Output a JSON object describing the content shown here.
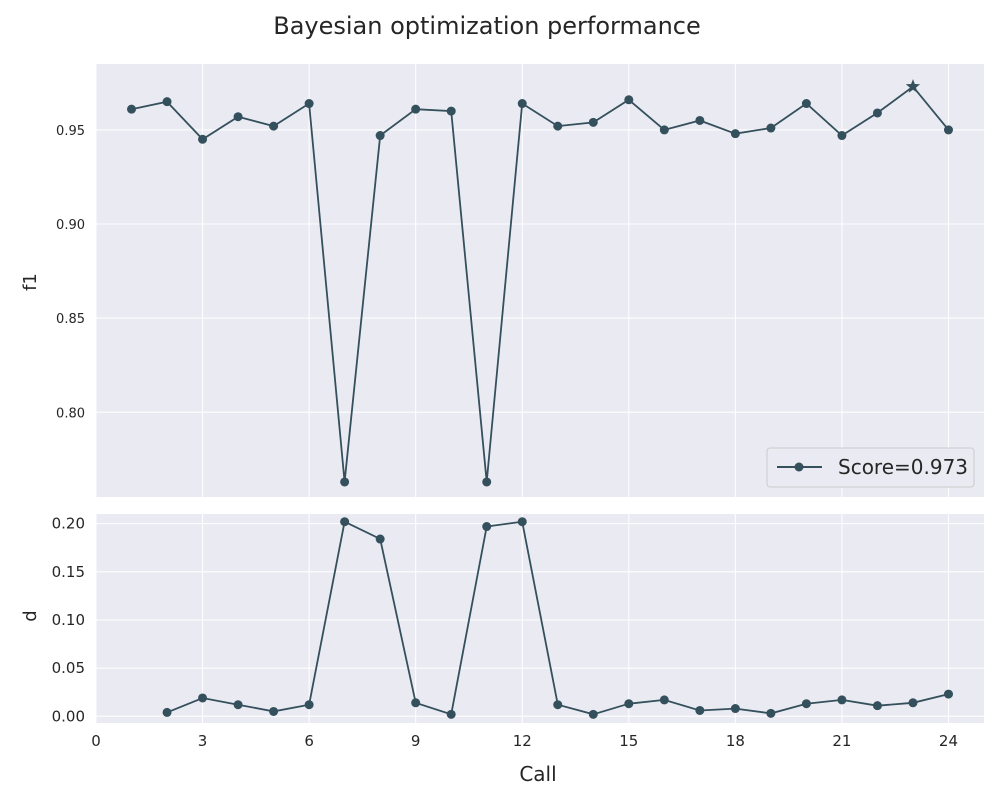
{
  "chart_data": [
    {
      "type": "line",
      "title": "Bayesian optimization performance",
      "ylabel": "f1",
      "xlabel": "",
      "xlim": [
        0,
        25
      ],
      "ylim": [
        0.755,
        0.985
      ],
      "yticks": [
        0.8,
        0.85,
        0.9,
        0.95
      ],
      "ytick_labels": [
        "0.80",
        "0.85",
        "0.90",
        "0.95"
      ],
      "grid": true,
      "legend": {
        "placement": "bottom-right",
        "entries": [
          "Score=0.973"
        ]
      },
      "series": [
        {
          "color": "#34505c",
          "marker": "circle",
          "x": [
            1,
            2,
            3,
            4,
            5,
            6,
            7,
            8,
            9,
            10,
            11,
            12,
            13,
            14,
            15,
            16,
            17,
            18,
            19,
            20,
            21,
            22,
            23,
            24
          ],
          "values": [
            0.961,
            0.965,
            0.945,
            0.957,
            0.952,
            0.964,
            0.763,
            0.947,
            0.961,
            0.96,
            0.763,
            0.964,
            0.952,
            0.954,
            0.966,
            0.95,
            0.955,
            0.948,
            0.951,
            0.964,
            0.947,
            0.959,
            0.973,
            0.95
          ]
        }
      ],
      "best_point": {
        "x": 23,
        "y": 0.973,
        "marker": "star"
      }
    },
    {
      "type": "line",
      "title": "",
      "ylabel": "d",
      "xlabel": "Call",
      "xlim": [
        0,
        25
      ],
      "ylim": [
        -0.007,
        0.21
      ],
      "xticks": [
        0,
        3,
        6,
        9,
        12,
        15,
        18,
        21,
        24
      ],
      "xtick_labels": [
        "0",
        "3",
        "6",
        "9",
        "12",
        "15",
        "18",
        "21",
        "24"
      ],
      "yticks": [
        0.0,
        0.05,
        0.1,
        0.15,
        0.2
      ],
      "ytick_labels": [
        "0.00",
        "0.05",
        "0.10",
        "0.15",
        "0.20"
      ],
      "grid": true,
      "series": [
        {
          "color": "#34505c",
          "marker": "circle",
          "x": [
            2,
            3,
            4,
            5,
            6,
            7,
            8,
            9,
            10,
            11,
            12,
            13,
            14,
            15,
            16,
            17,
            18,
            19,
            20,
            21,
            22,
            23,
            24
          ],
          "values": [
            0.004,
            0.019,
            0.012,
            0.005,
            0.012,
            0.202,
            0.184,
            0.014,
            0.002,
            0.197,
            0.202,
            0.012,
            0.002,
            0.013,
            0.017,
            0.006,
            0.008,
            0.003,
            0.013,
            0.017,
            0.011,
            0.014,
            0.023
          ]
        }
      ]
    }
  ]
}
